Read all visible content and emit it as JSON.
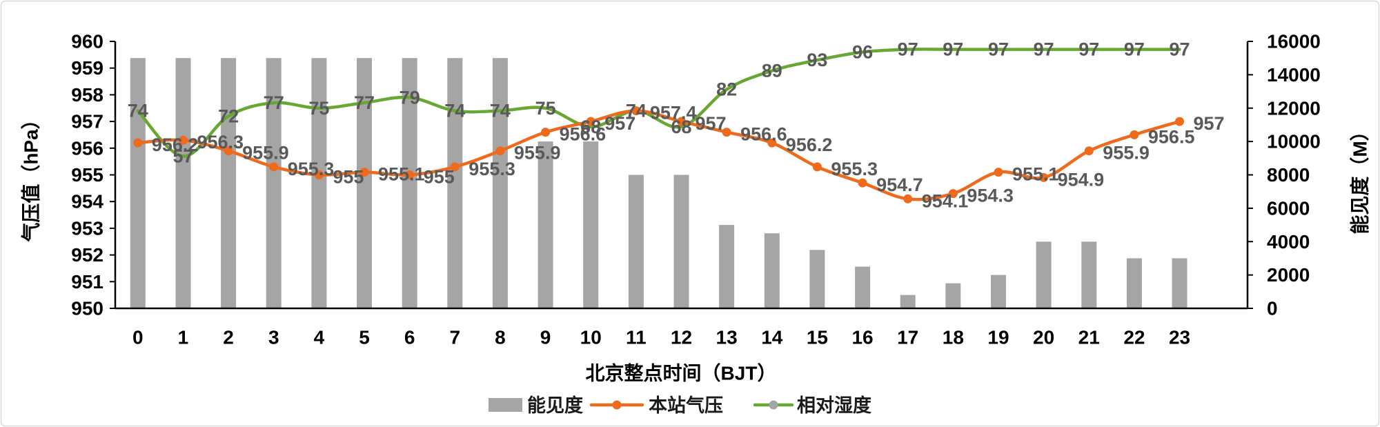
{
  "chart_data": {
    "type": "bar",
    "x": [
      0,
      1,
      2,
      3,
      4,
      5,
      6,
      7,
      8,
      9,
      10,
      11,
      12,
      13,
      14,
      15,
      16,
      17,
      18,
      19,
      20,
      21,
      22,
      23
    ],
    "xlabel": "北京整点时间（BJT）",
    "ylabel": "气压值（hPa）",
    "y2label": "能见度（M）",
    "ylim": [
      950,
      960
    ],
    "y2lim": [
      0,
      16000
    ],
    "yticks": [
      950,
      951,
      952,
      953,
      954,
      955,
      956,
      957,
      958,
      959,
      960
    ],
    "y2ticks": [
      0,
      2000,
      4000,
      6000,
      8000,
      10000,
      12000,
      14000,
      16000
    ],
    "grid": false,
    "legend": "bottom",
    "series": [
      {
        "name": "能见度",
        "type": "bar",
        "axis": "right",
        "color": "#a5a5a5",
        "values": [
          15000,
          15000,
          15000,
          15000,
          15000,
          15000,
          15000,
          15000,
          15000,
          10000,
          10000,
          8000,
          8000,
          5000,
          4500,
          3500,
          2500,
          800,
          1500,
          2000,
          4000,
          4000,
          3000,
          3000
        ]
      },
      {
        "name": "本站气压",
        "type": "line",
        "axis": "left",
        "smooth": true,
        "marker": "circle",
        "data_labels": true,
        "color": "#ef6a1a",
        "values": [
          956.2,
          956.3,
          955.9,
          955.3,
          955,
          955.1,
          955,
          955.3,
          955.9,
          956.6,
          957,
          957.4,
          957,
          956.6,
          956.2,
          955.3,
          954.7,
          954.1,
          954.3,
          955.1,
          954.9,
          955.9,
          956.5,
          957
        ]
      },
      {
        "name": "相对湿度",
        "type": "line",
        "axis": "hidden",
        "smooth": true,
        "data_labels": true,
        "color": "#66a832",
        "marker_color": "#a5a5a5",
        "values": [
          74,
          57,
          72,
          77,
          75,
          77,
          79,
          74,
          74,
          75,
          68,
          74,
          68,
          82,
          89,
          93,
          96,
          97,
          97,
          97,
          97,
          97,
          97,
          97
        ]
      }
    ]
  }
}
